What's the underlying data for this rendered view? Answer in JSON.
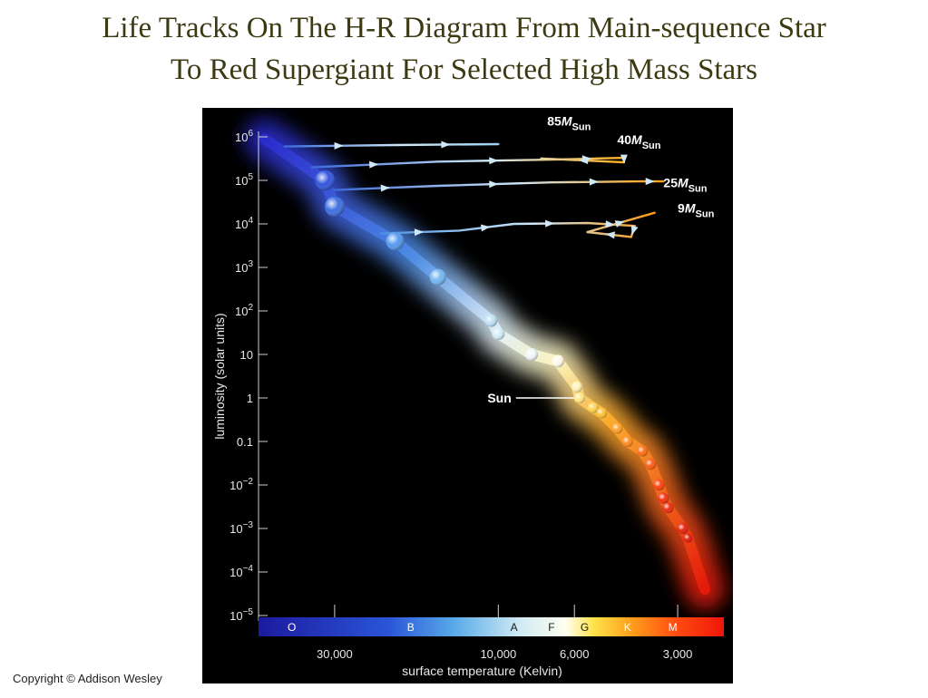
{
  "page": {
    "title_line1": "Life Tracks On The H-R Diagram From Main-sequence Star",
    "title_line2": "To Red Supergiant For Selected High Mass Stars",
    "copyright": "Copyright © Addison Wesley"
  },
  "chart_data": {
    "type": "scatter",
    "title": "",
    "ylabel": "luminosity (solar units)",
    "xlabel": "surface temperature (Kelvin)",
    "y_scale": "log",
    "x_scale": "log-reversed",
    "ylim": [
      1e-05,
      1000000
    ],
    "xlim": [
      50000,
      2200
    ],
    "y_ticks": [
      {
        "value": 1000000,
        "base": "10",
        "exp": "6"
      },
      {
        "value": 100000,
        "base": "10",
        "exp": "5"
      },
      {
        "value": 10000,
        "base": "10",
        "exp": "4"
      },
      {
        "value": 1000,
        "base": "10",
        "exp": "3"
      },
      {
        "value": 100,
        "base": "10",
        "exp": "2"
      },
      {
        "value": 10,
        "base": "10",
        "exp": ""
      },
      {
        "value": 1,
        "base": "1",
        "exp": ""
      },
      {
        "value": 0.1,
        "base": "0.1",
        "exp": ""
      },
      {
        "value": 0.01,
        "base": "10",
        "exp": "−2"
      },
      {
        "value": 0.001,
        "base": "10",
        "exp": "−3"
      },
      {
        "value": 0.0001,
        "base": "10",
        "exp": "−4"
      },
      {
        "value": 1e-05,
        "base": "10",
        "exp": "−5"
      }
    ],
    "x_ticks": [
      {
        "value": 30000,
        "label": "30,000"
      },
      {
        "value": 10000,
        "label": "10,000"
      },
      {
        "value": 6000,
        "label": "6,000"
      },
      {
        "value": 3000,
        "label": "3,000"
      }
    ],
    "spectral_classes": [
      {
        "label": "O",
        "temp": 40000,
        "color": "#ffffff"
      },
      {
        "label": "B",
        "temp": 18000,
        "color": "#ffffff"
      },
      {
        "label": "A",
        "temp": 9000,
        "color": "#1a1a1a"
      },
      {
        "label": "F",
        "temp": 7000,
        "color": "#1a1a1a"
      },
      {
        "label": "G",
        "temp": 5600,
        "color": "#1a1a1a"
      },
      {
        "label": "K",
        "temp": 4200,
        "color": "#ffffff"
      },
      {
        "label": "M",
        "temp": 3100,
        "color": "#ffffff"
      }
    ],
    "sun": {
      "label": "Sun",
      "temp": 5800,
      "lum": 1
    },
    "main_sequence": [
      {
        "temp": 32000,
        "lum": 100000,
        "size": 11,
        "color": "#3355dd"
      },
      {
        "temp": 30000,
        "lum": 25000,
        "size": 11,
        "color": "#3f6fe0"
      },
      {
        "temp": 20000,
        "lum": 4000,
        "size": 10,
        "color": "#5599ee"
      },
      {
        "temp": 15000,
        "lum": 600,
        "size": 9,
        "color": "#77b8f2"
      },
      {
        "temp": 10500,
        "lum": 60,
        "size": 7,
        "color": "#bde1f5"
      },
      {
        "temp": 10000,
        "lum": 30,
        "size": 7,
        "color": "#d3ecf7"
      },
      {
        "temp": 8000,
        "lum": 10,
        "size": 7,
        "color": "#eef6f8"
      },
      {
        "temp": 6700,
        "lum": 7,
        "size": 7,
        "color": "#fff8e6"
      },
      {
        "temp": 5900,
        "lum": 1.8,
        "size": 6,
        "color": "#fff2b0"
      },
      {
        "temp": 5800,
        "lum": 1,
        "size": 6,
        "color": "#ffe680"
      },
      {
        "temp": 5300,
        "lum": 0.6,
        "size": 6,
        "color": "#ffd24d"
      },
      {
        "temp": 5000,
        "lum": 0.45,
        "size": 6,
        "color": "#ffbf33"
      },
      {
        "temp": 4500,
        "lum": 0.2,
        "size": 6,
        "color": "#ff9e22"
      },
      {
        "temp": 4200,
        "lum": 0.1,
        "size": 6,
        "color": "#ff8a1a"
      },
      {
        "temp": 3800,
        "lum": 0.06,
        "size": 6,
        "color": "#ff6a14"
      },
      {
        "temp": 3600,
        "lum": 0.03,
        "size": 6,
        "color": "#ff5a10"
      },
      {
        "temp": 3400,
        "lum": 0.01,
        "size": 6,
        "color": "#ff400d"
      },
      {
        "temp": 3300,
        "lum": 0.005,
        "size": 6,
        "color": "#f5300b"
      },
      {
        "temp": 3200,
        "lum": 0.003,
        "size": 6,
        "color": "#ee2a0a"
      },
      {
        "temp": 2900,
        "lum": 0.001,
        "size": 6,
        "color": "#e82008"
      },
      {
        "temp": 2800,
        "lum": 0.0006,
        "size": 5,
        "color": "#e01a06"
      }
    ],
    "series": [
      {
        "name": "85M",
        "sub": "Sun",
        "label_temp": 7200,
        "label_lum": 1800000,
        "points": [
          {
            "temp": 42000,
            "lum": 600000
          },
          {
            "temp": 20000,
            "lum": 650000
          },
          {
            "temp": 10000,
            "lum": 680000
          }
        ]
      },
      {
        "name": "40M",
        "sub": "Sun",
        "label_temp": 4500,
        "label_lum": 680000,
        "points": [
          {
            "temp": 35000,
            "lum": 200000
          },
          {
            "temp": 15000,
            "lum": 270000
          },
          {
            "temp": 7000,
            "lum": 300000
          },
          {
            "temp": 4300,
            "lum": 330000
          },
          {
            "temp": 4300,
            "lum": 260000
          },
          {
            "temp": 7500,
            "lum": 320000
          }
        ]
      },
      {
        "name": "25M",
        "sub": "Sun",
        "label_temp": 3300,
        "label_lum": 70000,
        "points": [
          {
            "temp": 30000,
            "lum": 60000
          },
          {
            "temp": 15000,
            "lum": 75000
          },
          {
            "temp": 7000,
            "lum": 90000
          },
          {
            "temp": 3900,
            "lum": 95000
          },
          {
            "temp": 3300,
            "lum": 95000
          }
        ]
      },
      {
        "name": "9M",
        "sub": "Sun",
        "label_temp": 3000,
        "label_lum": 18000,
        "points": [
          {
            "temp": 22000,
            "lum": 6000
          },
          {
            "temp": 13000,
            "lum": 7000
          },
          {
            "temp": 9000,
            "lum": 10000
          },
          {
            "temp": 5500,
            "lum": 10500
          },
          {
            "temp": 4000,
            "lum": 9000
          },
          {
            "temp": 4100,
            "lum": 5000
          },
          {
            "temp": 5500,
            "lum": 6500
          },
          {
            "temp": 3500,
            "lum": 18000
          }
        ]
      }
    ]
  }
}
